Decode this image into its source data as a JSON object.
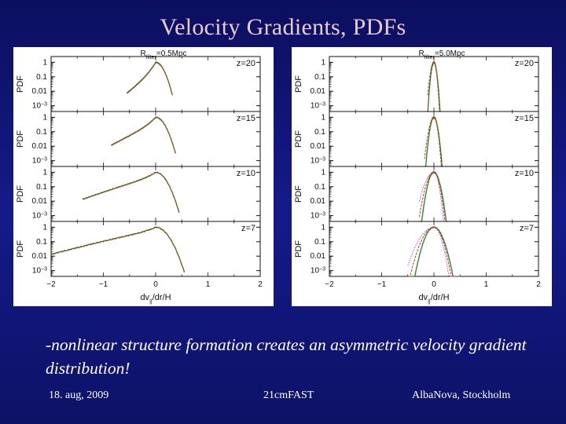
{
  "slide": {
    "title": "Velocity Gradients, PDFs",
    "caption": "-nonlinear structure formation creates an asymmetric velocity gradient distribution!",
    "footer_left": "18. aug, 2009",
    "footer_center": "21cmFAST",
    "footer_right": "AlbaNova, Stockholm"
  },
  "figures": [
    {
      "filter_label": "R",
      "filter_sub": "filter",
      "filter_value": "=0.5Mpc",
      "xlabel": "dv",
      "xlabel_sub": "||",
      "xlabel_tail": "/dr/H",
      "ylabel": "PDF",
      "x_ticks": [
        "−2",
        "−1",
        "0",
        "1",
        "2"
      ],
      "y_ticks": [
        "1",
        "0.1",
        "0.01",
        "10"
      ],
      "y_tick_exp": "−3",
      "redshifts": [
        "z=20",
        "z=15",
        "z=10",
        "z=7"
      ],
      "xlim": [
        -2,
        2
      ],
      "ylim_log10": [
        -3.4,
        0.4
      ],
      "curve_color_a": "#2a7a2a",
      "curve_color_b": "#c0392b",
      "curves": [
        {
          "z": 20,
          "peak_x": 0.0,
          "left_end": -0.55,
          "right_end": 0.32,
          "left_slope": 6.1,
          "right_width": 0.15
        },
        {
          "z": 15,
          "peak_x": 0.0,
          "left_end": -0.85,
          "right_end": 0.38,
          "left_slope": 3.9,
          "right_width": 0.17
        },
        {
          "z": 10,
          "peak_x": 0.0,
          "left_end": -1.4,
          "right_end": 0.45,
          "left_slope": 2.4,
          "right_width": 0.19
        },
        {
          "z": 7,
          "peak_x": 0.0,
          "left_end": -2.0,
          "right_end": 0.55,
          "left_slope": 1.7,
          "right_width": 0.22
        }
      ]
    },
    {
      "filter_label": "R",
      "filter_sub": "filter",
      "filter_value": "=5.0Mpc",
      "xlabel": "dv",
      "xlabel_sub": "||",
      "xlabel_tail": "/dr/H",
      "ylabel": "PDF",
      "x_ticks": [
        "−2",
        "−1",
        "0",
        "1",
        "2"
      ],
      "y_ticks": [
        "1",
        "0.1",
        "0.01",
        "10"
      ],
      "y_tick_exp": "−3",
      "redshifts": [
        "z=20",
        "z=15",
        "z=10",
        "z=7"
      ],
      "xlim": [
        -2,
        2
      ],
      "ylim_log10": [
        -3.4,
        0.4
      ],
      "curve_color_a": "#2a7a2a",
      "curve_color_b": "#c0392b",
      "curve_color_c": "#b03aa0",
      "curves": [
        {
          "z": 20,
          "peak_x": 0.0,
          "left_end": -0.12,
          "right_end": 0.12,
          "left_slope": 0,
          "right_width": 0.045
        },
        {
          "z": 15,
          "peak_x": 0.0,
          "left_end": -0.18,
          "right_end": 0.17,
          "left_slope": 0,
          "right_width": 0.06
        },
        {
          "z": 10,
          "peak_x": 0.0,
          "left_end": -0.28,
          "right_end": 0.26,
          "left_slope": 0,
          "right_width": 0.09
        },
        {
          "z": 7,
          "peak_x": 0.0,
          "left_end": -0.5,
          "right_end": 0.5,
          "left_slope": 0,
          "right_width": 0.14
        }
      ]
    }
  ]
}
